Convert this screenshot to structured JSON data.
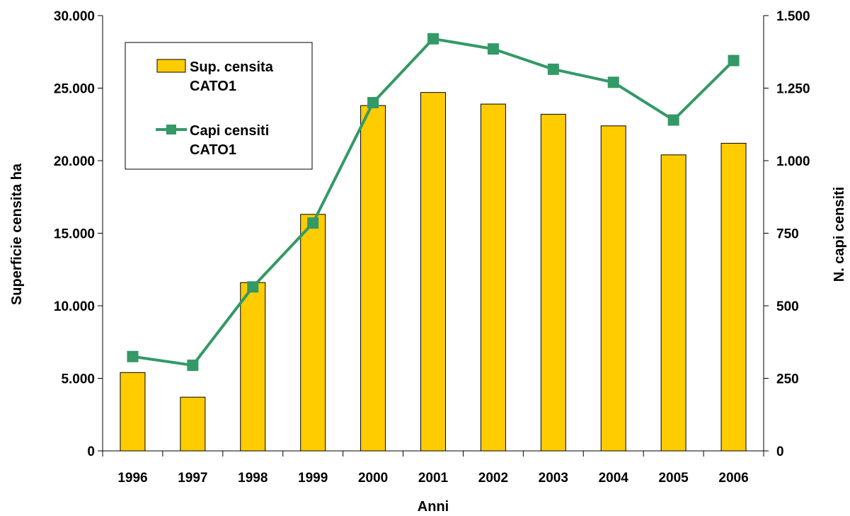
{
  "chart_data": {
    "type": "bar",
    "categories": [
      "1996",
      "1997",
      "1998",
      "1999",
      "2000",
      "2001",
      "2002",
      "2003",
      "2004",
      "2005",
      "2006"
    ],
    "series": [
      {
        "name": "Sup. censita CATO1",
        "type": "bar",
        "axis": "left",
        "color": "#FFCC00",
        "values": [
          5400,
          3700,
          11600,
          16300,
          23800,
          24700,
          23900,
          23200,
          22400,
          20400,
          21200
        ]
      },
      {
        "name": "Capi censiti CATO1",
        "type": "line",
        "axis": "right",
        "color": "#339966",
        "marker": "square",
        "values": [
          325,
          295,
          565,
          785,
          1200,
          1420,
          1385,
          1315,
          1270,
          1140,
          1345
        ]
      }
    ],
    "legend_lines": [
      [
        "Sup. censita",
        "CATO1"
      ],
      [
        "Capi censiti",
        "CATO1"
      ]
    ],
    "xlabel": "Anni",
    "ylabel": "Superficie censita ha",
    "y2label": "N. capi censiti",
    "ylim": [
      0,
      30000
    ],
    "y2lim": [
      0,
      1500
    ],
    "yticks": [
      0,
      5000,
      10000,
      15000,
      20000,
      25000,
      30000
    ],
    "ytick_labels": [
      "0",
      "5.000",
      "10.000",
      "15.000",
      "20.000",
      "25.000",
      "30.000"
    ],
    "y2ticks": [
      0,
      250,
      500,
      750,
      1000,
      1250,
      1500
    ],
    "y2tick_labels": [
      "0",
      "250",
      "500",
      "750",
      "1.000",
      "1.250",
      "1.500"
    ],
    "grid": false,
    "legend_position": "top-left"
  }
}
